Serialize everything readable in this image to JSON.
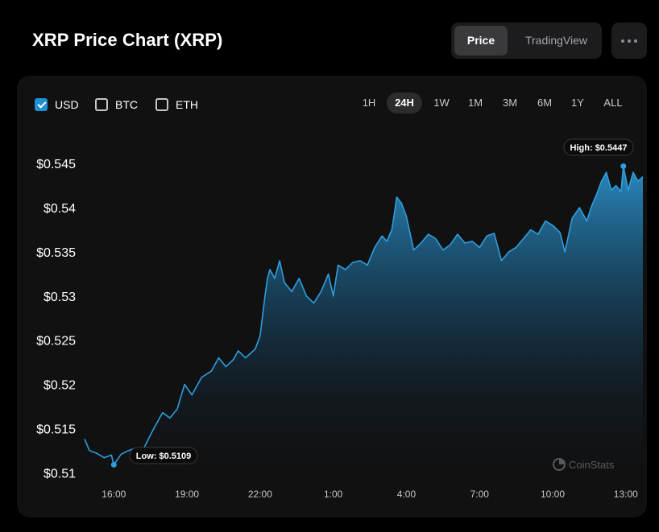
{
  "header": {
    "title": "XRP Price Chart (XRP)",
    "view_tabs": [
      {
        "label": "Price",
        "active": true
      },
      {
        "label": "TradingView",
        "active": false
      }
    ]
  },
  "currencies": [
    {
      "label": "USD",
      "checked": true
    },
    {
      "label": "BTC",
      "checked": false
    },
    {
      "label": "ETH",
      "checked": false
    }
  ],
  "ranges": [
    {
      "label": "1H",
      "active": false
    },
    {
      "label": "24H",
      "active": true
    },
    {
      "label": "1W",
      "active": false
    },
    {
      "label": "1M",
      "active": false
    },
    {
      "label": "3M",
      "active": false
    },
    {
      "label": "6M",
      "active": false
    },
    {
      "label": "1Y",
      "active": false
    },
    {
      "label": "ALL",
      "active": false
    }
  ],
  "watermark": "CoinStats",
  "colors": {
    "line": "#2e9ede",
    "accent": "#1f8fd6",
    "background": "#111112"
  },
  "chart_data": {
    "type": "area",
    "title": "",
    "xlabel": "",
    "ylabel": "",
    "x_unit": "hour of day (continuous; values above 24 are the next day)",
    "x_ticks": [
      {
        "value": 16,
        "label": "16:00"
      },
      {
        "value": 19,
        "label": "19:00"
      },
      {
        "value": 22,
        "label": "22:00"
      },
      {
        "value": 25,
        "label": "1:00"
      },
      {
        "value": 28,
        "label": "4:00"
      },
      {
        "value": 31,
        "label": "7:00"
      },
      {
        "value": 34,
        "label": "10:00"
      },
      {
        "value": 37,
        "label": "13:00"
      }
    ],
    "y_ticks": [
      {
        "value": 0.51,
        "label": "$0.51"
      },
      {
        "value": 0.515,
        "label": "$0.515"
      },
      {
        "value": 0.52,
        "label": "$0.52"
      },
      {
        "value": 0.525,
        "label": "$0.525"
      },
      {
        "value": 0.53,
        "label": "$0.53"
      },
      {
        "value": 0.535,
        "label": "$0.535"
      },
      {
        "value": 0.54,
        "label": "$0.54"
      },
      {
        "value": 0.545,
        "label": "$0.545"
      }
    ],
    "xlim": [
      14.8,
      37.7
    ],
    "ylim": [
      0.5093,
      0.5462
    ],
    "grid": false,
    "annotations": [
      {
        "label": "High: $0.5447",
        "x": 36.9,
        "y": 0.5447
      },
      {
        "label": "Low: $0.5109",
        "x": 16.0,
        "y": 0.5109
      }
    ],
    "series": [
      {
        "name": "",
        "x": [
          14.8,
          15.0,
          15.3,
          15.6,
          15.9,
          16.0,
          16.3,
          16.6,
          16.9,
          17.0,
          17.2,
          17.6,
          18.0,
          18.3,
          18.6,
          18.9,
          19.2,
          19.6,
          20.0,
          20.3,
          20.6,
          20.9,
          21.1,
          21.4,
          21.6,
          21.8,
          22.0,
          22.2,
          22.3,
          22.4,
          22.6,
          22.8,
          23.0,
          23.3,
          23.6,
          23.9,
          24.2,
          24.5,
          24.8,
          25.0,
          25.2,
          25.5,
          25.8,
          26.1,
          26.4,
          26.7,
          27.0,
          27.2,
          27.4,
          27.5,
          27.6,
          27.8,
          28.0,
          28.3,
          28.6,
          28.9,
          29.2,
          29.5,
          29.8,
          30.1,
          30.4,
          30.7,
          31.0,
          31.3,
          31.6,
          31.9,
          32.2,
          32.5,
          32.8,
          33.1,
          33.4,
          33.7,
          34.0,
          34.3,
          34.5,
          34.8,
          35.1,
          35.4,
          35.6,
          35.8,
          36.0,
          36.2,
          36.4,
          36.6,
          36.8,
          36.9,
          37.1,
          37.3,
          37.5,
          37.7
        ],
        "y": [
          0.5138,
          0.5125,
          0.5122,
          0.5117,
          0.512,
          0.5109,
          0.5121,
          0.5125,
          0.5128,
          0.5123,
          0.5126,
          0.5148,
          0.5168,
          0.5162,
          0.5172,
          0.52,
          0.5188,
          0.5208,
          0.5215,
          0.523,
          0.522,
          0.5228,
          0.5238,
          0.523,
          0.5235,
          0.524,
          0.5255,
          0.53,
          0.532,
          0.533,
          0.532,
          0.534,
          0.5315,
          0.5305,
          0.532,
          0.53,
          0.5292,
          0.5305,
          0.5325,
          0.53,
          0.5335,
          0.533,
          0.5338,
          0.534,
          0.5335,
          0.5355,
          0.5368,
          0.5362,
          0.5375,
          0.5392,
          0.5412,
          0.5405,
          0.539,
          0.5352,
          0.536,
          0.537,
          0.5365,
          0.5352,
          0.5358,
          0.537,
          0.536,
          0.5362,
          0.5355,
          0.5368,
          0.5371,
          0.534,
          0.535,
          0.5355,
          0.5365,
          0.5375,
          0.537,
          0.5385,
          0.538,
          0.5372,
          0.535,
          0.5388,
          0.54,
          0.5385,
          0.5402,
          0.5415,
          0.543,
          0.544,
          0.542,
          0.5425,
          0.5418,
          0.5447,
          0.542,
          0.544,
          0.543,
          0.5435
        ]
      }
    ]
  }
}
